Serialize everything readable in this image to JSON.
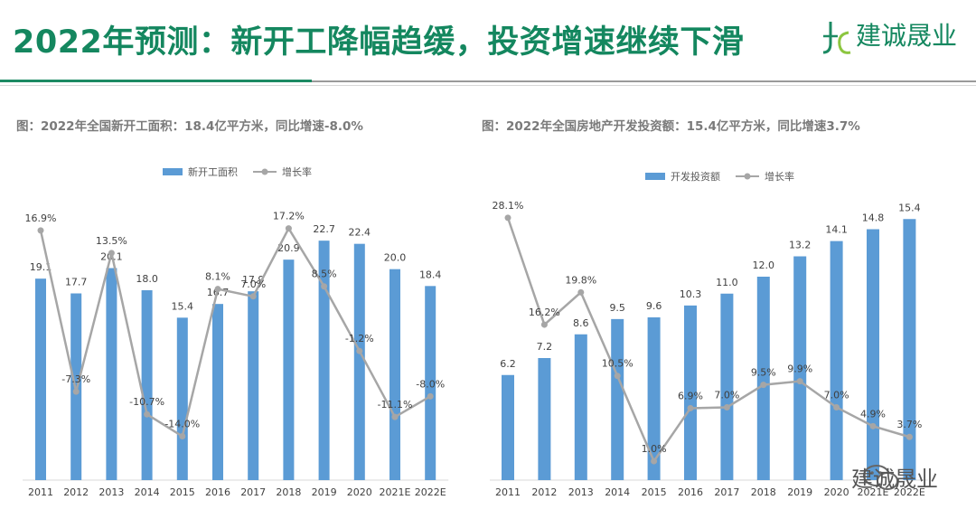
{
  "header": {
    "title": "2022年预测：新开工降幅趋缓，投资增速继续下滑",
    "logo_text": "建诚晟业"
  },
  "captions": {
    "left": "图：2022年全国新开工面积：18.4亿平方米，同比增速-8.0%",
    "right": "图：2022年全国房地产开发投资额：15.4亿平方米，同比增速3.7%"
  },
  "watermark": {
    "text": "建诚晟业"
  },
  "colors": {
    "bar": "#5b9bd5",
    "line": "#a6a6a6",
    "title": "#14875f"
  },
  "chart_data": [
    {
      "type": "bar+line",
      "categories": [
        "2011",
        "2012",
        "2013",
        "2014",
        "2015",
        "2016",
        "2017",
        "2018",
        "2019",
        "2020",
        "2021E",
        "2022E"
      ],
      "series": [
        {
          "name": "新开工面积",
          "type": "bar",
          "values": [
            19.1,
            17.7,
            20.1,
            18.0,
            15.4,
            16.7,
            17.9,
            20.9,
            22.7,
            22.4,
            20.0,
            18.4
          ],
          "labels": [
            "19.1",
            "17.7",
            "20.1",
            "18.0",
            "15.4",
            "16.7",
            "17.9",
            "20.9",
            "22.7",
            "22.4",
            "20.0",
            "18.4"
          ]
        },
        {
          "name": "增长率",
          "type": "line",
          "values": [
            16.9,
            -7.3,
            13.5,
            -10.7,
            -14.0,
            8.1,
            7.0,
            17.2,
            8.5,
            -1.2,
            -11.1,
            -8.0
          ],
          "labels": [
            "16.9%",
            "-7.3%",
            "13.5%",
            "-10.7%",
            "-14.0%",
            "8.1%",
            "7.0%",
            "17.2%",
            "8.5%",
            "-1.2%",
            "-11.1%",
            "-8.0%"
          ]
        }
      ],
      "bar_axis": [
        0,
        24
      ],
      "line_axis": [
        -18,
        20
      ],
      "legend": "top-center"
    },
    {
      "type": "bar+line",
      "categories": [
        "2011",
        "2012",
        "2013",
        "2014",
        "2015",
        "2016",
        "2017",
        "2018",
        "2019",
        "2020",
        "2021E",
        "2022E"
      ],
      "series": [
        {
          "name": "开发投资额",
          "type": "bar",
          "values": [
            6.2,
            7.2,
            8.6,
            9.5,
            9.6,
            10.3,
            11.0,
            12.0,
            13.2,
            14.1,
            14.8,
            15.4
          ],
          "labels": [
            "6.2",
            "7.2",
            "8.6",
            "9.5",
            "9.6",
            "10.3",
            "11.0",
            "12.0",
            "13.2",
            "14.1",
            "14.8",
            "15.4"
          ]
        },
        {
          "name": "增长率",
          "type": "line",
          "values": [
            28.1,
            16.2,
            19.8,
            10.5,
            1.0,
            6.9,
            7.0,
            9.5,
            9.9,
            7.0,
            4.9,
            3.7
          ],
          "labels": [
            "28.1%",
            "16.2%",
            "19.8%",
            "10.5%",
            "1.0%",
            "6.9%",
            "7.0%",
            "9.5%",
            "9.9%",
            "7.0%",
            "4.9%",
            "3.7%"
          ]
        }
      ],
      "bar_axis": [
        0,
        16
      ],
      "line_axis": [
        0,
        30
      ],
      "legend": "top-center"
    }
  ]
}
